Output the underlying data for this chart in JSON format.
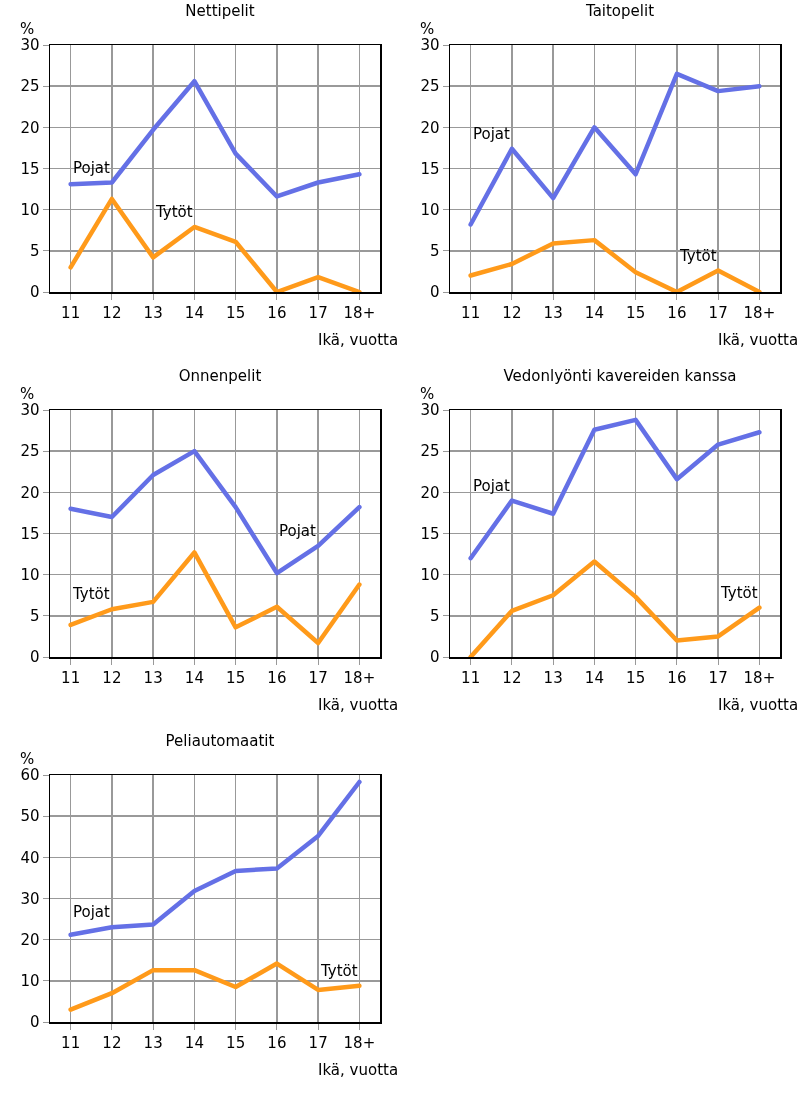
{
  "chart_data": [
    {
      "type": "line",
      "title": "Nettipelit",
      "ylabel": "%",
      "xlabel": "Ikä, vuotta",
      "categories": [
        "11",
        "12",
        "13",
        "14",
        "15",
        "16",
        "17",
        "18+"
      ],
      "ylim": [
        0,
        30
      ],
      "yticks": [
        0,
        5,
        10,
        15,
        20,
        25,
        30
      ],
      "grid": true,
      "legend": false,
      "marker": "none",
      "line_style": "solid",
      "series": [
        {
          "name": "Pojat",
          "color": "#6470e6",
          "values": [
            13.1,
            13.3,
            19.7,
            25.6,
            16.8,
            11.6,
            13.3,
            14.3
          ]
        },
        {
          "name": "Tytöt",
          "color": "#ff9a1a",
          "values": [
            3,
            11.3,
            4.2,
            7.9,
            6.1,
            0,
            1.8,
            0
          ]
        }
      ]
    },
    {
      "type": "line",
      "title": "Taitopelit",
      "ylabel": "%",
      "xlabel": "Ikä, vuotta",
      "categories": [
        "11",
        "12",
        "13",
        "14",
        "15",
        "16",
        "17",
        "18+"
      ],
      "ylim": [
        0,
        30
      ],
      "yticks": [
        0,
        5,
        10,
        15,
        20,
        25,
        30
      ],
      "grid": true,
      "legend": false,
      "marker": "none",
      "line_style": "solid",
      "series": [
        {
          "name": "Pojat",
          "color": "#6470e6",
          "values": [
            8.2,
            17.4,
            11.4,
            20,
            14.3,
            26.5,
            24.4,
            25
          ]
        },
        {
          "name": "Tytöt",
          "color": "#ff9a1a",
          "values": [
            2,
            3.4,
            5.9,
            6.3,
            2.4,
            0,
            2.6,
            0
          ]
        }
      ]
    },
    {
      "type": "line",
      "title": "Onnenpelit",
      "ylabel": "%",
      "xlabel": "Ikä, vuotta",
      "categories": [
        "11",
        "12",
        "13",
        "14",
        "15",
        "16",
        "17",
        "18+"
      ],
      "ylim": [
        0,
        30
      ],
      "yticks": [
        0,
        5,
        10,
        15,
        20,
        25,
        30
      ],
      "grid": true,
      "legend": false,
      "marker": "none",
      "line_style": "solid",
      "series": [
        {
          "name": "Pojat",
          "color": "#6470e6",
          "values": [
            18,
            17,
            22.1,
            25,
            18.2,
            10.2,
            13.5,
            18.2
          ]
        },
        {
          "name": "Tytöt",
          "color": "#ff9a1a",
          "values": [
            3.9,
            5.8,
            6.7,
            12.7,
            3.6,
            6.1,
            1.7,
            8.8
          ]
        }
      ]
    },
    {
      "type": "line",
      "title": "Vedonlyönti kavereiden kanssa",
      "ylabel": "%",
      "xlabel": "Ikä, vuotta",
      "categories": [
        "11",
        "12",
        "13",
        "14",
        "15",
        "16",
        "17",
        "18+"
      ],
      "ylim": [
        0,
        30
      ],
      "yticks": [
        0,
        5,
        10,
        15,
        20,
        25,
        30
      ],
      "grid": true,
      "legend": false,
      "marker": "none",
      "line_style": "solid",
      "series": [
        {
          "name": "Pojat",
          "color": "#6470e6",
          "values": [
            12,
            19,
            17.4,
            27.6,
            28.8,
            21.6,
            25.8,
            27.3
          ]
        },
        {
          "name": "Tytöt",
          "color": "#ff9a1a",
          "values": [
            0,
            5.6,
            7.5,
            11.6,
            7.3,
            2,
            2.5,
            6
          ]
        }
      ]
    },
    {
      "type": "line",
      "title": "Peliautomaatit",
      "ylabel": "%",
      "xlabel": "Ikä, vuotta",
      "categories": [
        "11",
        "12",
        "13",
        "14",
        "15",
        "16",
        "17",
        "18+"
      ],
      "ylim": [
        0,
        60
      ],
      "yticks": [
        0,
        10,
        20,
        30,
        40,
        50,
        60
      ],
      "grid": true,
      "legend": false,
      "marker": "none",
      "line_style": "solid",
      "series": [
        {
          "name": "Pojat",
          "color": "#6470e6",
          "values": [
            21.2,
            23,
            23.7,
            31.8,
            36.7,
            37.3,
            45.2,
            58.3
          ]
        },
        {
          "name": "Tytöt",
          "color": "#ff9a1a",
          "values": [
            3,
            7,
            12.6,
            12.6,
            8.5,
            14.2,
            7.8,
            8.8
          ]
        }
      ]
    }
  ]
}
